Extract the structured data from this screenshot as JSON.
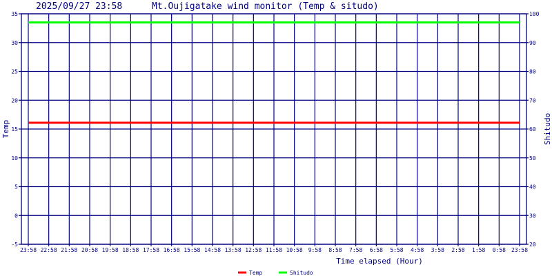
{
  "chart_data": {
    "type": "line",
    "timestamp": "2025/09/27 23:58",
    "title": "Mt.Oujigatake wind monitor (Temp & situdo)",
    "xlabel": "Time elapsed (Hour)",
    "ylabel_left": "Temp",
    "ylabel_right": "Shitudo",
    "ylim_left": [
      -5,
      35
    ],
    "yticks_left": [
      35,
      30,
      25,
      20,
      15,
      10,
      5,
      0,
      -5
    ],
    "ylim_right": [
      20,
      100
    ],
    "yticks_right": [
      100,
      90,
      80,
      70,
      60,
      50,
      40,
      30,
      20
    ],
    "x_tick_labels": [
      "23:58",
      "22:58",
      "21:58",
      "20:58",
      "19:58",
      "18:58",
      "17:58",
      "16:58",
      "15:58",
      "14:58",
      "13:58",
      "12:58",
      "11:58",
      "10:58",
      "9:58",
      "8:58",
      "7:58",
      "6:58",
      "5:58",
      "4:58",
      "3:58",
      "2:58",
      "1:58",
      "0:58",
      "23:58"
    ],
    "grid": true,
    "legend_placement": "bottom",
    "series": [
      {
        "name": "Temp",
        "axis": "left",
        "color": "#ff0000",
        "values": [
          16.1,
          16.1
        ]
      },
      {
        "name": "Shitudo",
        "axis": "right",
        "color": "#00ff00",
        "values": [
          97,
          97
        ]
      }
    ],
    "colors": {
      "grid": "#000080",
      "text": "#000080"
    }
  }
}
